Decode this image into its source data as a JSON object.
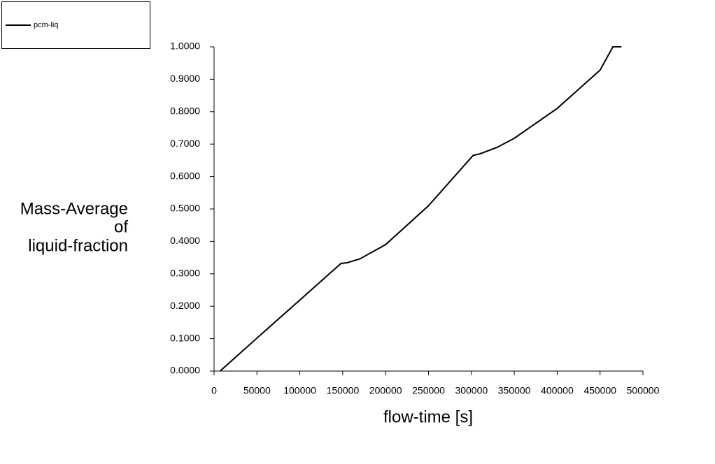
{
  "chart_data": {
    "type": "line",
    "xlabel": "flow-time [s]",
    "ylabel": [
      "Mass-Average",
      "of",
      "liquid-fraction"
    ],
    "x": [
      7000,
      50000,
      100000,
      148000,
      155000,
      170000,
      200000,
      250000,
      302000,
      310000,
      330000,
      350000,
      400000,
      450000,
      465000,
      475000
    ],
    "series": [
      {
        "name": "pcm-liq",
        "color": "#000000",
        "values": [
          0,
          0.1017,
          0.219,
          0.332,
          0.334,
          0.346,
          0.39,
          0.51,
          0.665,
          0.67,
          0.69,
          0.718,
          0.81,
          0.928,
          1.0,
          1.0
        ]
      }
    ],
    "xlim": [
      0,
      500000
    ],
    "xticks": [
      0,
      50000,
      100000,
      150000,
      200000,
      250000,
      300000,
      350000,
      400000,
      450000,
      500000
    ],
    "ylim": [
      0,
      1
    ],
    "yticks": [
      {
        "value": 0,
        "label": "0.0000"
      },
      {
        "value": 0.1,
        "label": "0.1000"
      },
      {
        "value": 0.2,
        "label": "0.2000"
      },
      {
        "value": 0.3,
        "label": "0.3000"
      },
      {
        "value": 0.4,
        "label": "0.4000"
      },
      {
        "value": 0.5,
        "label": "0.5000"
      },
      {
        "value": 0.6,
        "label": "0.6000"
      },
      {
        "value": 0.7,
        "label": "0.7000"
      },
      {
        "value": 0.8,
        "label": "0.8000"
      },
      {
        "value": 0.9,
        "label": "0.9000"
      },
      {
        "value": 1,
        "label": "1.0000"
      }
    ],
    "legend": "top-left"
  }
}
